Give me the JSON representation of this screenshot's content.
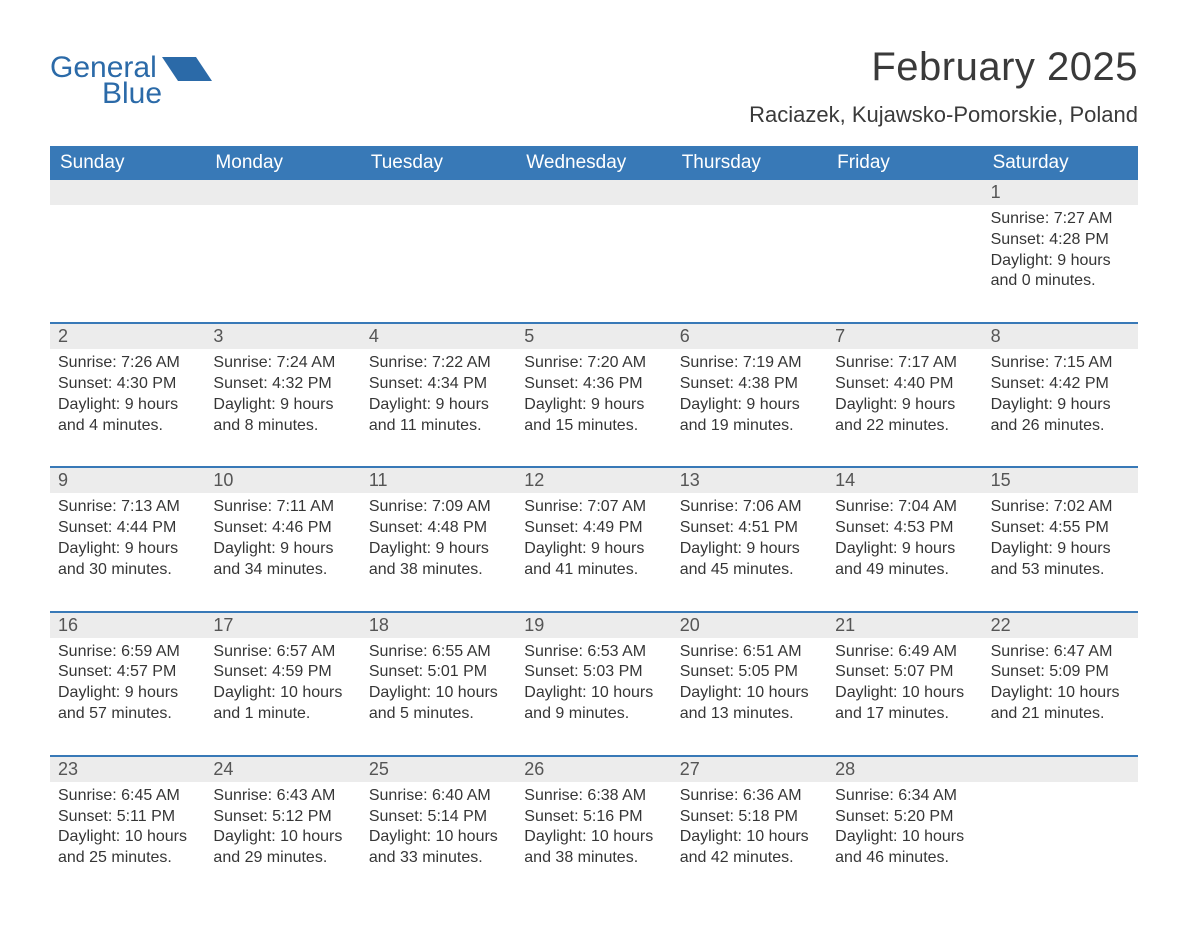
{
  "brand": {
    "general": "General",
    "blue": "Blue",
    "logo_fill": "#2b6aa8",
    "text_color": "#2b6aa8"
  },
  "title": "February 2025",
  "location": "Raciazek, Kujawsko-Pomorskie, Poland",
  "colors": {
    "header_bg": "#3879b7",
    "header_text": "#ffffff",
    "daynum_bg": "#ececec",
    "daynum_text": "#555555",
    "body_text": "#363636",
    "rule": "#3879b7",
    "page_bg": "#ffffff"
  },
  "fonts": {
    "title_size_pt": 30,
    "location_size_pt": 16,
    "header_size_pt": 14,
    "daynum_size_pt": 13,
    "cell_size_pt": 12
  },
  "day_names": [
    "Sunday",
    "Monday",
    "Tuesday",
    "Wednesday",
    "Thursday",
    "Friday",
    "Saturday"
  ],
  "weeks": [
    {
      "nums": [
        "",
        "",
        "",
        "",
        "",
        "",
        "1"
      ],
      "cells": [
        null,
        null,
        null,
        null,
        null,
        null,
        {
          "sunrise": "Sunrise: 7:27 AM",
          "sunset": "Sunset: 4:28 PM",
          "day1": "Daylight: 9 hours",
          "day2": "and 0 minutes."
        }
      ]
    },
    {
      "nums": [
        "2",
        "3",
        "4",
        "5",
        "6",
        "7",
        "8"
      ],
      "cells": [
        {
          "sunrise": "Sunrise: 7:26 AM",
          "sunset": "Sunset: 4:30 PM",
          "day1": "Daylight: 9 hours",
          "day2": "and 4 minutes."
        },
        {
          "sunrise": "Sunrise: 7:24 AM",
          "sunset": "Sunset: 4:32 PM",
          "day1": "Daylight: 9 hours",
          "day2": "and 8 minutes."
        },
        {
          "sunrise": "Sunrise: 7:22 AM",
          "sunset": "Sunset: 4:34 PM",
          "day1": "Daylight: 9 hours",
          "day2": "and 11 minutes."
        },
        {
          "sunrise": "Sunrise: 7:20 AM",
          "sunset": "Sunset: 4:36 PM",
          "day1": "Daylight: 9 hours",
          "day2": "and 15 minutes."
        },
        {
          "sunrise": "Sunrise: 7:19 AM",
          "sunset": "Sunset: 4:38 PM",
          "day1": "Daylight: 9 hours",
          "day2": "and 19 minutes."
        },
        {
          "sunrise": "Sunrise: 7:17 AM",
          "sunset": "Sunset: 4:40 PM",
          "day1": "Daylight: 9 hours",
          "day2": "and 22 minutes."
        },
        {
          "sunrise": "Sunrise: 7:15 AM",
          "sunset": "Sunset: 4:42 PM",
          "day1": "Daylight: 9 hours",
          "day2": "and 26 minutes."
        }
      ]
    },
    {
      "nums": [
        "9",
        "10",
        "11",
        "12",
        "13",
        "14",
        "15"
      ],
      "cells": [
        {
          "sunrise": "Sunrise: 7:13 AM",
          "sunset": "Sunset: 4:44 PM",
          "day1": "Daylight: 9 hours",
          "day2": "and 30 minutes."
        },
        {
          "sunrise": "Sunrise: 7:11 AM",
          "sunset": "Sunset: 4:46 PM",
          "day1": "Daylight: 9 hours",
          "day2": "and 34 minutes."
        },
        {
          "sunrise": "Sunrise: 7:09 AM",
          "sunset": "Sunset: 4:48 PM",
          "day1": "Daylight: 9 hours",
          "day2": "and 38 minutes."
        },
        {
          "sunrise": "Sunrise: 7:07 AM",
          "sunset": "Sunset: 4:49 PM",
          "day1": "Daylight: 9 hours",
          "day2": "and 41 minutes."
        },
        {
          "sunrise": "Sunrise: 7:06 AM",
          "sunset": "Sunset: 4:51 PM",
          "day1": "Daylight: 9 hours",
          "day2": "and 45 minutes."
        },
        {
          "sunrise": "Sunrise: 7:04 AM",
          "sunset": "Sunset: 4:53 PM",
          "day1": "Daylight: 9 hours",
          "day2": "and 49 minutes."
        },
        {
          "sunrise": "Sunrise: 7:02 AM",
          "sunset": "Sunset: 4:55 PM",
          "day1": "Daylight: 9 hours",
          "day2": "and 53 minutes."
        }
      ]
    },
    {
      "nums": [
        "16",
        "17",
        "18",
        "19",
        "20",
        "21",
        "22"
      ],
      "cells": [
        {
          "sunrise": "Sunrise: 6:59 AM",
          "sunset": "Sunset: 4:57 PM",
          "day1": "Daylight: 9 hours",
          "day2": "and 57 minutes."
        },
        {
          "sunrise": "Sunrise: 6:57 AM",
          "sunset": "Sunset: 4:59 PM",
          "day1": "Daylight: 10 hours",
          "day2": "and 1 minute."
        },
        {
          "sunrise": "Sunrise: 6:55 AM",
          "sunset": "Sunset: 5:01 PM",
          "day1": "Daylight: 10 hours",
          "day2": "and 5 minutes."
        },
        {
          "sunrise": "Sunrise: 6:53 AM",
          "sunset": "Sunset: 5:03 PM",
          "day1": "Daylight: 10 hours",
          "day2": "and 9 minutes."
        },
        {
          "sunrise": "Sunrise: 6:51 AM",
          "sunset": "Sunset: 5:05 PM",
          "day1": "Daylight: 10 hours",
          "day2": "and 13 minutes."
        },
        {
          "sunrise": "Sunrise: 6:49 AM",
          "sunset": "Sunset: 5:07 PM",
          "day1": "Daylight: 10 hours",
          "day2": "and 17 minutes."
        },
        {
          "sunrise": "Sunrise: 6:47 AM",
          "sunset": "Sunset: 5:09 PM",
          "day1": "Daylight: 10 hours",
          "day2": "and 21 minutes."
        }
      ]
    },
    {
      "nums": [
        "23",
        "24",
        "25",
        "26",
        "27",
        "28",
        ""
      ],
      "cells": [
        {
          "sunrise": "Sunrise: 6:45 AM",
          "sunset": "Sunset: 5:11 PM",
          "day1": "Daylight: 10 hours",
          "day2": "and 25 minutes."
        },
        {
          "sunrise": "Sunrise: 6:43 AM",
          "sunset": "Sunset: 5:12 PM",
          "day1": "Daylight: 10 hours",
          "day2": "and 29 minutes."
        },
        {
          "sunrise": "Sunrise: 6:40 AM",
          "sunset": "Sunset: 5:14 PM",
          "day1": "Daylight: 10 hours",
          "day2": "and 33 minutes."
        },
        {
          "sunrise": "Sunrise: 6:38 AM",
          "sunset": "Sunset: 5:16 PM",
          "day1": "Daylight: 10 hours",
          "day2": "and 38 minutes."
        },
        {
          "sunrise": "Sunrise: 6:36 AM",
          "sunset": "Sunset: 5:18 PM",
          "day1": "Daylight: 10 hours",
          "day2": "and 42 minutes."
        },
        {
          "sunrise": "Sunrise: 6:34 AM",
          "sunset": "Sunset: 5:20 PM",
          "day1": "Daylight: 10 hours",
          "day2": "and 46 minutes."
        },
        null
      ]
    }
  ]
}
